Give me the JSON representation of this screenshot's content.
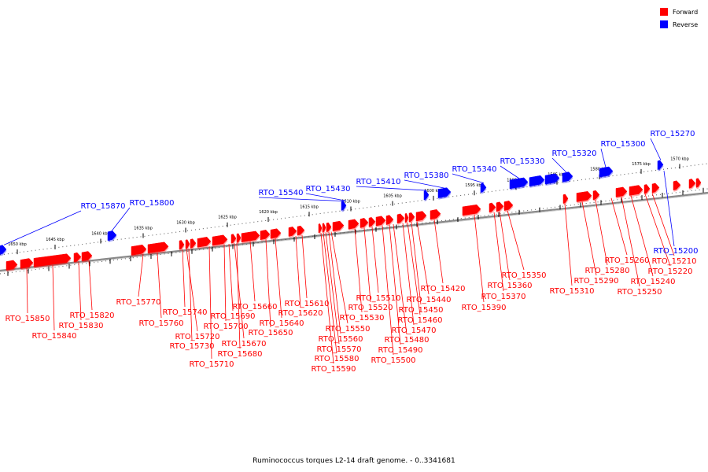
{
  "title": "Ruminococcus torques L2-14 draft genome. - 0..3341681",
  "legend": [
    {
      "label": "Forward",
      "color": "#ff0000"
    },
    {
      "label": "Reverse",
      "color": "#0000ff"
    }
  ],
  "colors": {
    "forward": "#ff0000",
    "reverse": "#0000ff",
    "backbone": "#888888"
  },
  "kbp_ticks": [
    "1650 kbp",
    "1645 kbp",
    "1640 kbp",
    "1635 kbp",
    "1630 kbp",
    "1625 kbp",
    "1620 kbp",
    "1615 kbp",
    "1610 kbp",
    "1605 kbp",
    "1600 kbp",
    "1595 kbp",
    "1590 kbp",
    "1585 kbp",
    "1580 kbp",
    "1575 kbp",
    "1570 kbp"
  ],
  "forward_genes": [
    "RTO_15850",
    "RTO_15840",
    "RTO_15830",
    "RTO_15820",
    "RTO_15770",
    "RTO_15760",
    "RTO_15740",
    "RTO_15730",
    "RTO_15720",
    "RTO_15710",
    "RTO_15700",
    "RTO_15690",
    "RTO_15680",
    "RTO_15670",
    "RTO_15660",
    "RTO_15650",
    "RTO_15640",
    "RTO_15620",
    "RTO_15610",
    "RTO_15590",
    "RTO_15580",
    "RTO_15570",
    "RTO_15560",
    "RTO_15550",
    "RTO_15530",
    "RTO_15520",
    "RTO_15510",
    "RTO_15500",
    "RTO_15490",
    "RTO_15480",
    "RTO_15470",
    "RTO_15460",
    "RTO_15450",
    "RTO_15440",
    "RTO_15420",
    "RTO_15390",
    "RTO_15370",
    "RTO_15360",
    "RTO_15350",
    "RTO_15310",
    "RTO_15290",
    "RTO_15280",
    "RTO_15260",
    "RTO_15250",
    "RTO_15240",
    "RTO_15220",
    "RTO_15210"
  ],
  "reverse_genes": [
    "RTO_15870",
    "RTO_15800",
    "RTO_15540",
    "RTO_15430",
    "RTO_15410",
    "RTO_15380",
    "RTO_15340",
    "RTO_15330",
    "RTO_15320",
    "RTO_15300",
    "RTO_15270",
    "RTO_15200"
  ]
}
